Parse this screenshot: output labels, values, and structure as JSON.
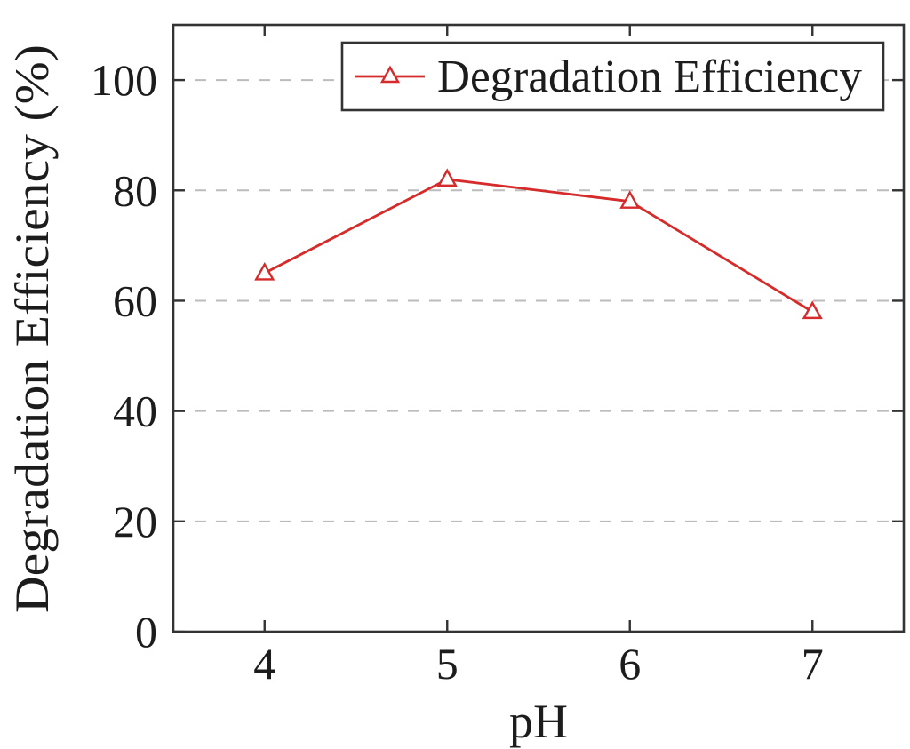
{
  "chart_data": {
    "type": "line",
    "title": "",
    "xlabel": "pH",
    "ylabel": "Degradation Efficiency (%)",
    "x": [
      4,
      5,
      6,
      7
    ],
    "series": [
      {
        "name": "Degradation Efficiency",
        "values": [
          65,
          82,
          78,
          58
        ],
        "color": "#d62b2b",
        "marker": "open-triangle"
      }
    ],
    "xlim": [
      3.5,
      7.5
    ],
    "ylim": [
      0,
      110
    ],
    "xticks": [
      4,
      5,
      6,
      7
    ],
    "yticks": [
      0,
      20,
      40,
      60,
      80,
      100
    ],
    "grid": "horizontal-dashed",
    "legend_position": "top-right-inside",
    "colors": {
      "line": "#d62b2b",
      "grid": "#bcbcbc",
      "axis": "#333333",
      "text": "#1c1c1c",
      "background": "#ffffff"
    }
  },
  "legend": {
    "label": "Degradation Efficiency",
    "marker_icon": "open-triangle-icon"
  },
  "axes": {
    "xlabel": "pH",
    "ylabel": "Degradation Efficiency (%)"
  }
}
